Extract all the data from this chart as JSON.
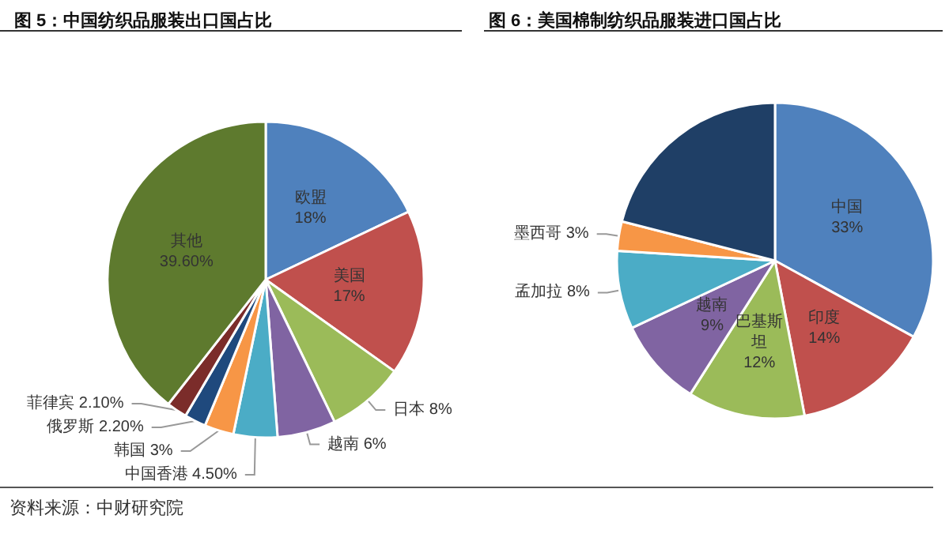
{
  "chart_data": [
    {
      "type": "pie",
      "title": "图 5：中国纺织品服装出口国占比",
      "categories": [
        "欧盟",
        "美国",
        "日本",
        "越南",
        "中国香港",
        "韩国",
        "俄罗斯",
        "菲律宾",
        "其他"
      ],
      "values": [
        18,
        17,
        8,
        6,
        4.5,
        3,
        2.2,
        2.1,
        39.6
      ],
      "value_labels": [
        "18%",
        "17%",
        "8%",
        "6%",
        "4.50%",
        "3%",
        "2.20%",
        "2.10%",
        "39.60%"
      ],
      "colors": [
        "#4f81bd",
        "#c0504d",
        "#9bbb59",
        "#8064a2",
        "#4bacc6",
        "#f79646",
        "#1f497d",
        "#7b2c2a",
        "#5e7a2e"
      ],
      "annotations": [
        "资料来源：中财研究院"
      ]
    },
    {
      "type": "pie",
      "title": "图 6：美国棉制纺织品服装进口国占比",
      "categories": [
        "中国",
        "印度",
        "巴基斯坦",
        "越南",
        "孟加拉",
        "墨西哥",
        null
      ],
      "values": [
        33,
        14,
        12,
        9,
        8,
        3,
        21
      ],
      "value_labels": [
        "33%",
        "14%",
        "12%",
        "9%",
        "8%",
        "3%",
        null
      ],
      "colors": [
        "#4f81bd",
        "#c0504d",
        "#9bbb59",
        "#8064a2",
        "#4bacc6",
        "#f79646",
        "#1f3f66"
      ]
    }
  ]
}
